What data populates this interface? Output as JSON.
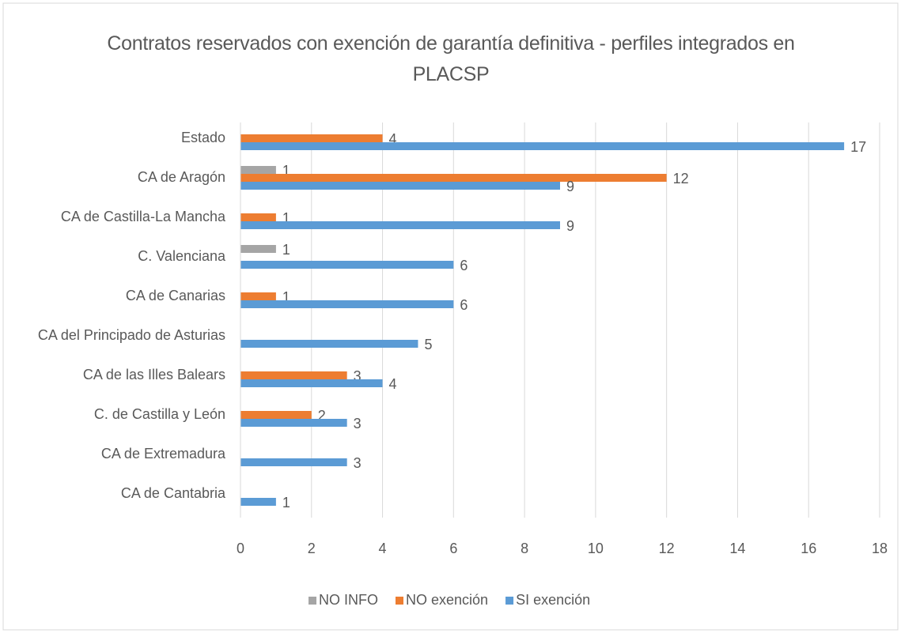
{
  "chart_data": {
    "type": "bar",
    "orientation": "horizontal",
    "title": "Contratos reservados con exención de garantía definitiva - perfiles integrados en PLACSP",
    "categories": [
      "Estado",
      "CA de Aragón",
      "CA de Castilla-La Mancha",
      "C. Valenciana",
      "CA de Canarias",
      "CA del Principado de Asturias",
      "CA de las Illes Balears",
      "C. de Castilla y León",
      "CA de Extremadura",
      "CA de Cantabria"
    ],
    "series": [
      {
        "name": "NO INFO",
        "color": "#a5a5a5",
        "values": [
          null,
          1,
          null,
          1,
          null,
          null,
          null,
          null,
          null,
          null
        ]
      },
      {
        "name": "NO exención",
        "color": "#ed7d31",
        "values": [
          4,
          12,
          1,
          null,
          1,
          null,
          3,
          2,
          null,
          null
        ]
      },
      {
        "name": "SI exención",
        "color": "#5b9bd5",
        "values": [
          17,
          9,
          9,
          6,
          6,
          5,
          4,
          3,
          3,
          1
        ]
      }
    ],
    "xlim": [
      0,
      18
    ],
    "xticks": [
      0,
      2,
      4,
      6,
      8,
      10,
      12,
      14,
      16,
      18
    ],
    "grid": true,
    "legend": "bottom"
  }
}
